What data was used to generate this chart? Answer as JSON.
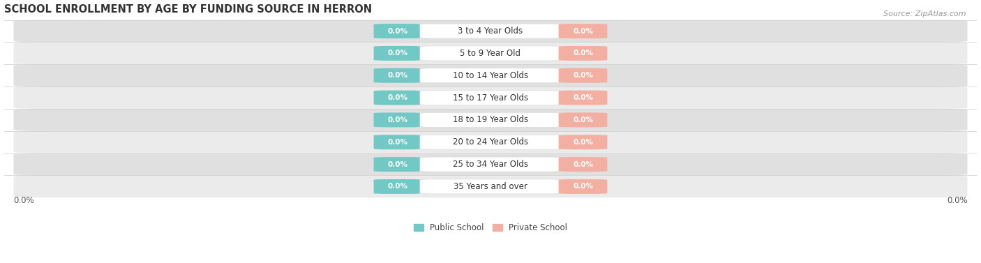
{
  "title": "SCHOOL ENROLLMENT BY AGE BY FUNDING SOURCE IN HERRON",
  "source": "Source: ZipAtlas.com",
  "categories": [
    "3 to 4 Year Olds",
    "5 to 9 Year Old",
    "10 to 14 Year Olds",
    "15 to 17 Year Olds",
    "18 to 19 Year Olds",
    "20 to 24 Year Olds",
    "25 to 34 Year Olds",
    "35 Years and over"
  ],
  "public_values": [
    0.0,
    0.0,
    0.0,
    0.0,
    0.0,
    0.0,
    0.0,
    0.0
  ],
  "private_values": [
    0.0,
    0.0,
    0.0,
    0.0,
    0.0,
    0.0,
    0.0,
    0.0
  ],
  "public_color": "#72C8C4",
  "private_color": "#F2AFA2",
  "x_left_label": "0.0%",
  "x_right_label": "0.0%",
  "background_color": "#FFFFFF",
  "row_bg_colors": [
    "#EBEBEB",
    "#E0E0E0"
  ],
  "title_fontsize": 10.5,
  "label_fontsize": 7.5,
  "cat_fontsize": 8.5,
  "tick_fontsize": 8.5,
  "source_fontsize": 8
}
